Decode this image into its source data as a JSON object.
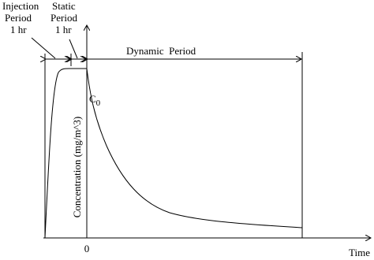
{
  "labels": {
    "injection": [
      "Injection",
      "Period",
      "1 hr"
    ],
    "static": [
      "Static",
      "Period",
      "1 hr"
    ],
    "dynamic": "Dynamic  Period",
    "c0_main": "C",
    "c0_sub": "0",
    "y_axis": "Concentration (mg/m^3)",
    "x_axis": "Time",
    "origin": "0"
  }
}
